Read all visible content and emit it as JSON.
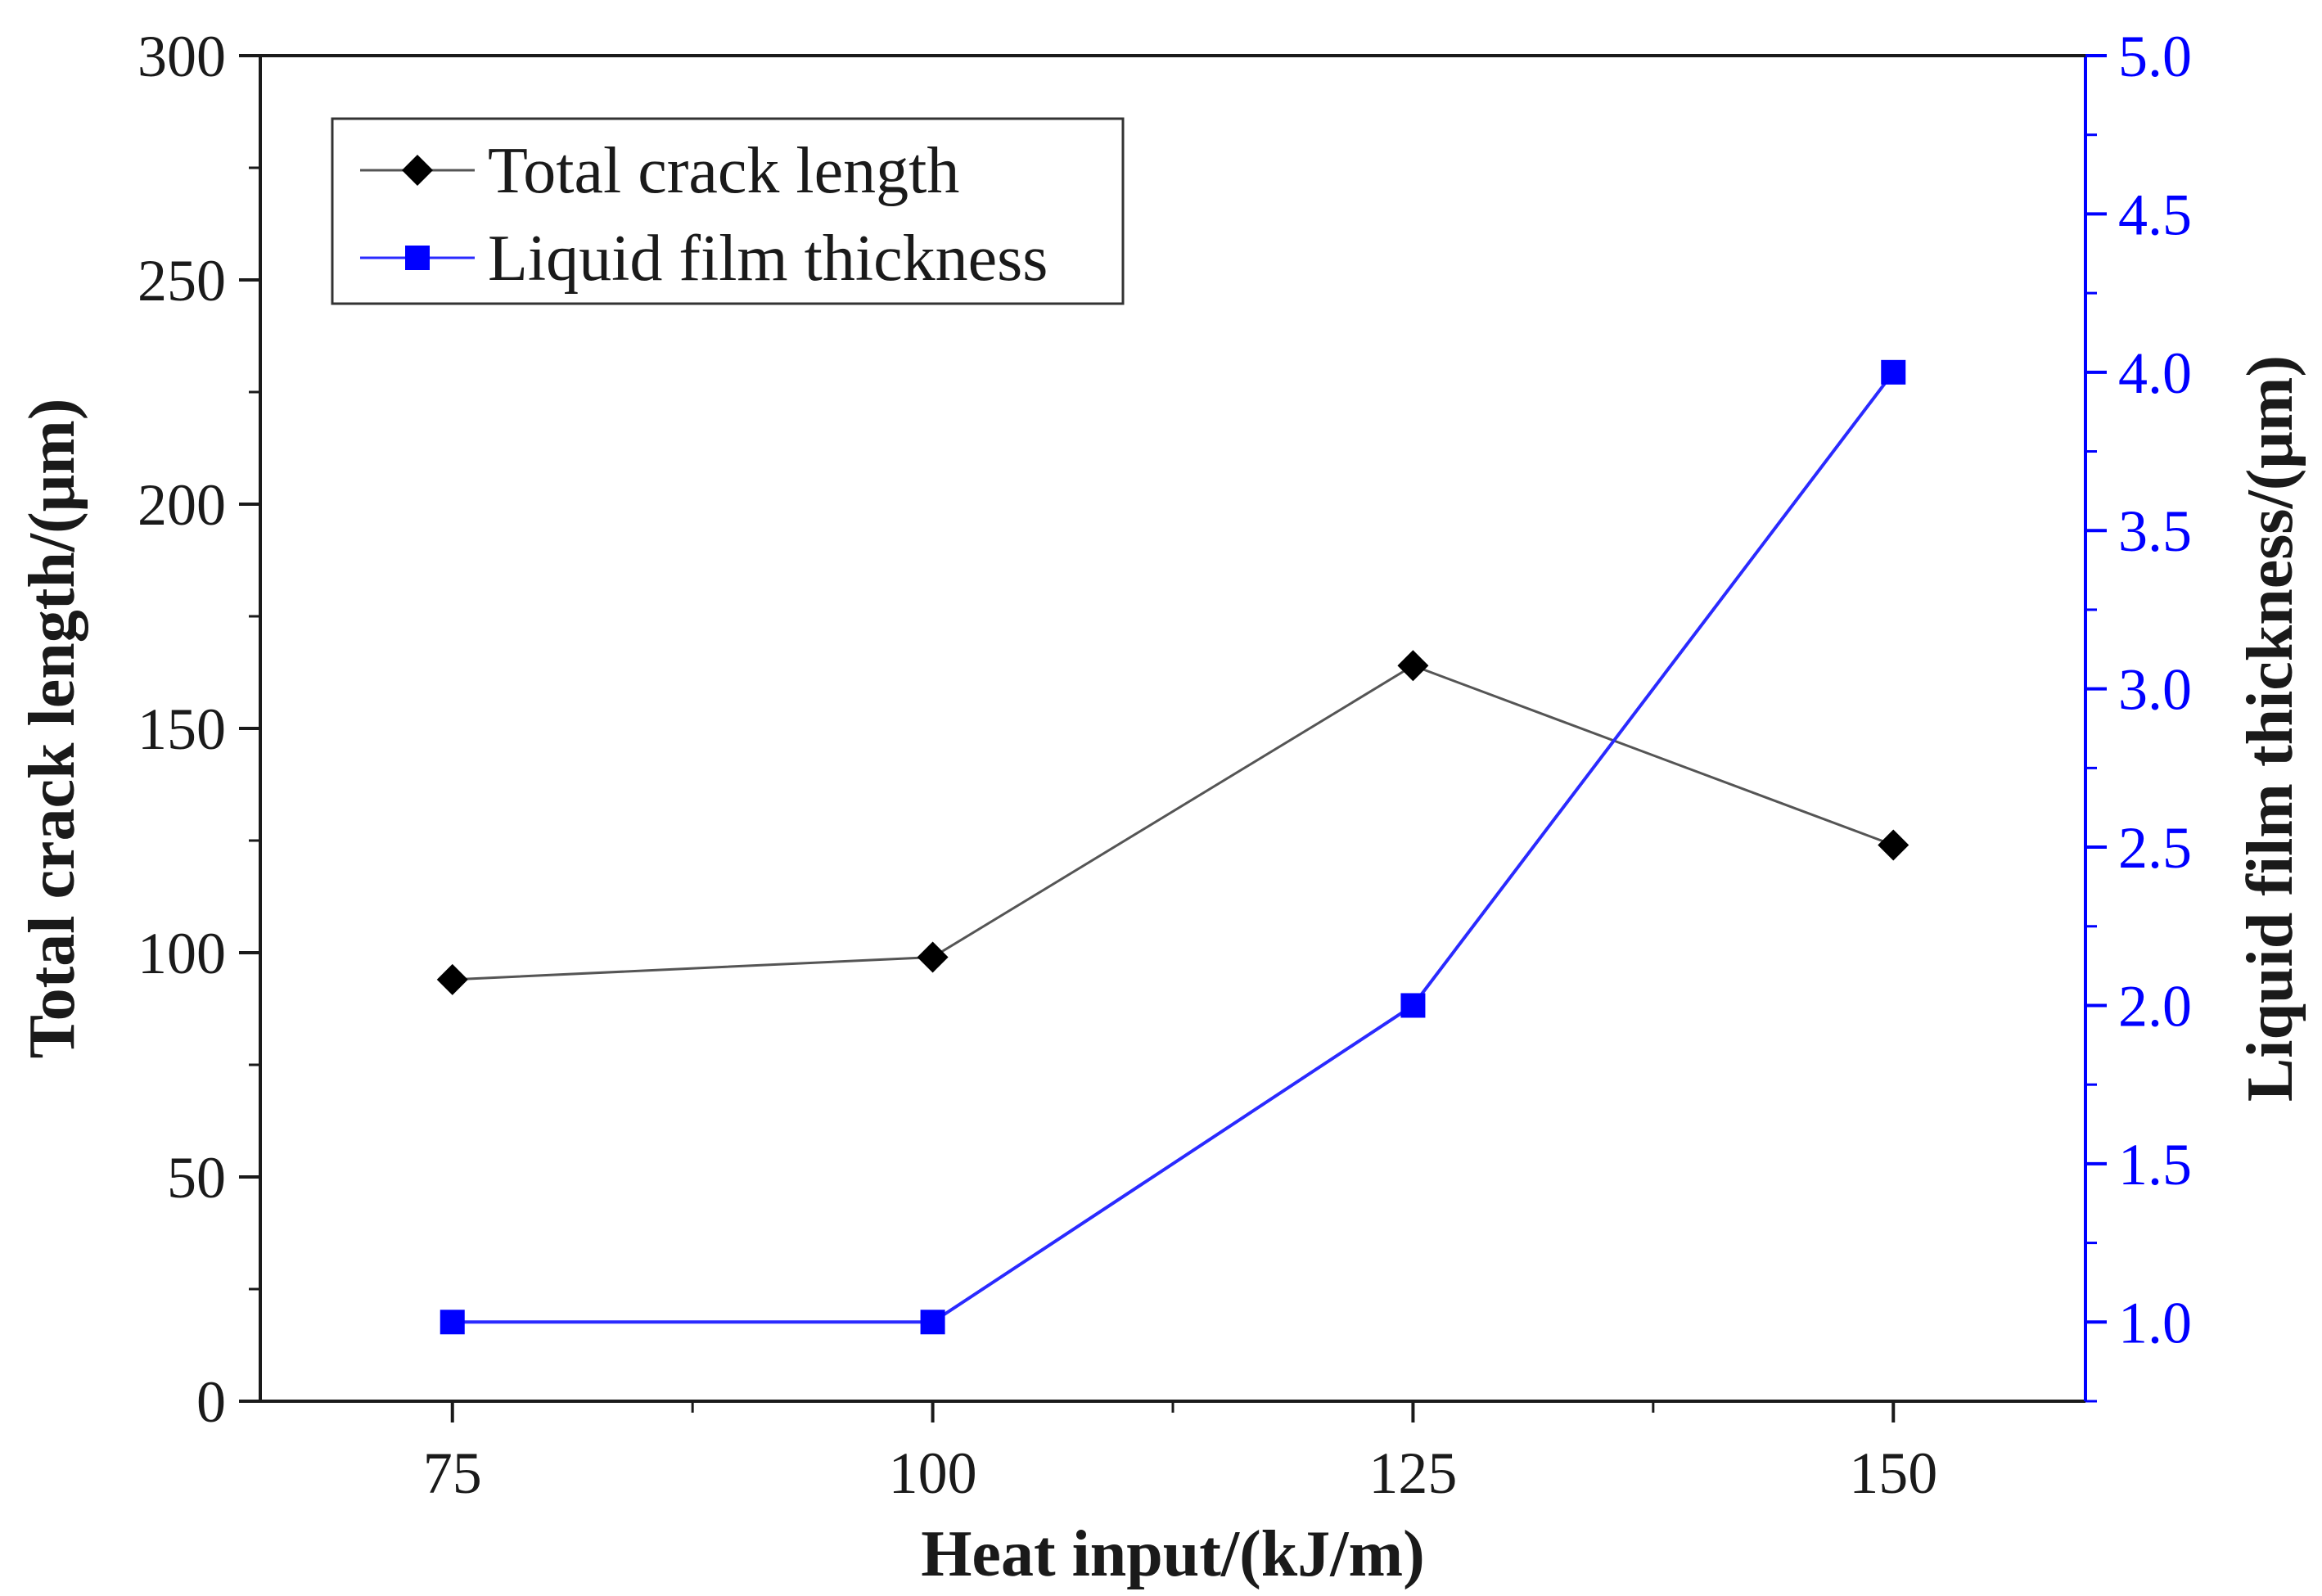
{
  "chart_data": {
    "type": "line",
    "title": "",
    "x": [
      75,
      100,
      125,
      150
    ],
    "xlabel": "Heat input/(kJ/m)",
    "xlim": [
      65,
      160
    ],
    "x_ticks": [
      75,
      100,
      125,
      150
    ],
    "ylabel_left": "Total crack length/(μm)",
    "ylim_left": [
      0,
      300
    ],
    "yticks_left": [
      0,
      50,
      100,
      150,
      200,
      250,
      300
    ],
    "ylabel_right": "Liquid film thickness/(μm)",
    "ylim_right": [
      0.75,
      5.0
    ],
    "yticks_right": [
      "1.0",
      "1.5",
      "2.0",
      "2.5",
      "3.0",
      "3.5",
      "4.0",
      "4.5",
      "5.0"
    ],
    "grid": false,
    "legend_position": "top-left",
    "series": [
      {
        "name": "Total crack length",
        "axis": "left",
        "marker": "diamond",
        "color": "#000000",
        "line_color": "#555555",
        "values": [
          94,
          99,
          164,
          124
        ]
      },
      {
        "name": "Liquid film thickness",
        "axis": "right",
        "marker": "square",
        "color": "#0000ff",
        "line_color": "#2a2aff",
        "values": [
          1.0,
          1.0,
          2.0,
          4.0
        ]
      }
    ],
    "right_axis_color": "#0000ff"
  }
}
